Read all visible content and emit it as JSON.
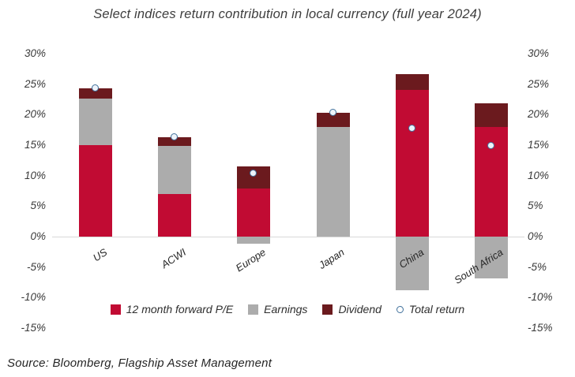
{
  "title": "Select indices return contribution in local currency (full year 2024)",
  "source": "Source: Bloomberg, Flagship Asset Management",
  "colors": {
    "pe": "#c10b33",
    "earnings": "#acacac",
    "dividend": "#6b1a1e",
    "marker_stroke": "#41719c",
    "marker_fill": "#eef3fa",
    "zero_line": "#d8d8d8",
    "text": "#3a3a3a"
  },
  "legend": [
    {
      "label": "12 month forward P/E",
      "color": "#c10b33",
      "shape": "square"
    },
    {
      "label": "Earnings",
      "color": "#acacac",
      "shape": "square"
    },
    {
      "label": "Dividend",
      "color": "#6b1a1e",
      "shape": "square"
    },
    {
      "label": "Total return",
      "color": "#41719c",
      "shape": "circle"
    }
  ],
  "chart_data": {
    "type": "bar",
    "stacked": true,
    "title": "Select indices return contribution in local currency (full year 2024)",
    "categories": [
      "US",
      "ACWI",
      "Europe",
      "Japan",
      "China",
      "South Africa"
    ],
    "series": [
      {
        "name": "12 month forward P/E",
        "color": "#c10b33",
        "values": [
          15.0,
          7.0,
          7.9,
          0,
          24.0,
          18.0
        ]
      },
      {
        "name": "Earnings",
        "color": "#acacac",
        "values": [
          7.7,
          7.9,
          -1.2,
          18.0,
          -8.8,
          -6.9
        ]
      },
      {
        "name": "Dividend",
        "color": "#6b1a1e",
        "values": [
          1.6,
          1.4,
          3.6,
          2.3,
          2.6,
          3.8
        ]
      }
    ],
    "markers": {
      "name": "Total return",
      "values": [
        24.3,
        16.3,
        10.3,
        20.3,
        17.7,
        14.9
      ]
    },
    "ylim": [
      -15,
      30
    ],
    "ytick_step": 5,
    "ytick_format": "percent",
    "grid": false,
    "legend_position": "bottom"
  }
}
